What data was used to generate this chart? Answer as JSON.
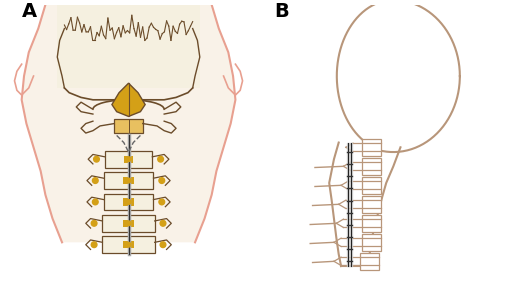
{
  "bg_color": "#ffffff",
  "skin_color": "#f5e6d3",
  "bone_color": "#f5f0e0",
  "bone_outline": "#6b4c2a",
  "skin_outline": "#e8a090",
  "gold_color": "#d4a017",
  "gold_light": "#e8c060",
  "spine_side_color": "#b8967a",
  "label_A": "A",
  "label_B": "B",
  "label_fontsize": 14,
  "figsize": [
    5.1,
    2.94
  ],
  "dpi": 100
}
